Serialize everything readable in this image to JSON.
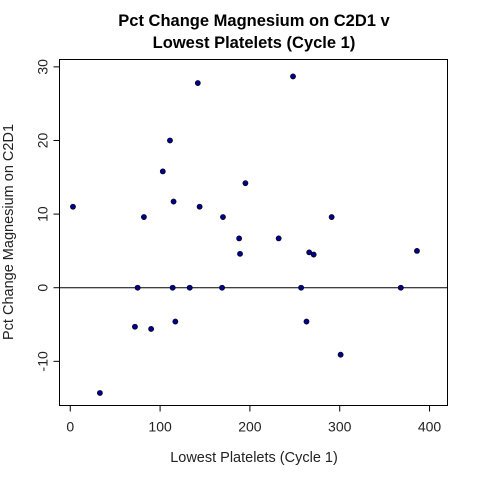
{
  "chart_data": {
    "type": "scatter",
    "title": [
      "Pct Change Magnesium on C2D1 v",
      "Lowest Platelets (Cycle 1)"
    ],
    "xlabel": "Lowest Platelets (Cycle 1)",
    "ylabel": "Pct Change Magnesium on C2D1",
    "xlim": [
      -12,
      420
    ],
    "ylim": [
      -16,
      31
    ],
    "x_ticks": [
      0,
      100,
      200,
      300,
      400
    ],
    "y_ticks": [
      -10,
      0,
      10,
      20,
      30
    ],
    "x_tick_labels": [
      "0",
      "100",
      "200",
      "300",
      "400"
    ],
    "y_tick_labels": [
      "-10",
      "0",
      "10",
      "20",
      "30"
    ],
    "reference_line_y": 0,
    "point_color": "#00008B",
    "points": [
      {
        "x": 3,
        "y": 11.0
      },
      {
        "x": 33,
        "y": -14.3
      },
      {
        "x": 72,
        "y": -5.3
      },
      {
        "x": 75,
        "y": 0.0
      },
      {
        "x": 82,
        "y": 9.6
      },
      {
        "x": 90,
        "y": -5.6
      },
      {
        "x": 103,
        "y": 15.8
      },
      {
        "x": 111,
        "y": 20.0
      },
      {
        "x": 114,
        "y": 0.0
      },
      {
        "x": 115,
        "y": 11.7
      },
      {
        "x": 117,
        "y": -4.6
      },
      {
        "x": 133,
        "y": 0.0
      },
      {
        "x": 142,
        "y": 27.8
      },
      {
        "x": 144,
        "y": 11.0
      },
      {
        "x": 169,
        "y": 0.0
      },
      {
        "x": 170,
        "y": 9.6
      },
      {
        "x": 188,
        "y": 6.7
      },
      {
        "x": 189,
        "y": 4.6
      },
      {
        "x": 195,
        "y": 14.2
      },
      {
        "x": 232,
        "y": 6.7
      },
      {
        "x": 248,
        "y": 28.7
      },
      {
        "x": 257,
        "y": 0.0
      },
      {
        "x": 263,
        "y": -4.6
      },
      {
        "x": 266,
        "y": 4.8
      },
      {
        "x": 271,
        "y": 4.5
      },
      {
        "x": 291,
        "y": 9.6
      },
      {
        "x": 301,
        "y": -9.1
      },
      {
        "x": 368,
        "y": 0.0
      },
      {
        "x": 386,
        "y": 5.0
      }
    ]
  }
}
